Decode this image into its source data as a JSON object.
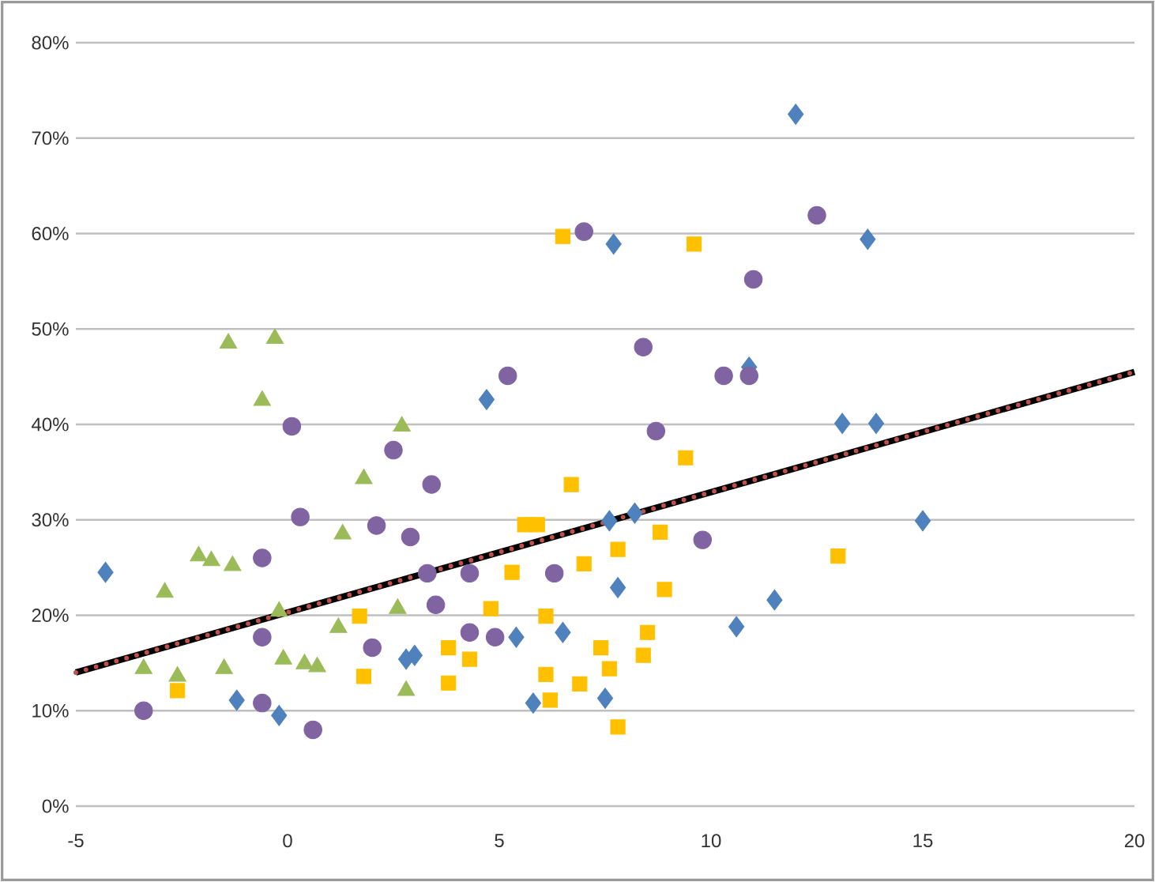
{
  "chart_data": {
    "type": "scatter",
    "xlim": [
      -5,
      20
    ],
    "xticks": [
      -5,
      0,
      5,
      10,
      15,
      20
    ],
    "ylim": [
      0,
      80
    ],
    "yticks": [
      {
        "value": 0,
        "label": "0%"
      },
      {
        "value": 10,
        "label": "10%"
      },
      {
        "value": 20,
        "label": "20%"
      },
      {
        "value": 30,
        "label": "30%"
      },
      {
        "value": 40,
        "label": "40%"
      },
      {
        "value": 50,
        "label": "50%"
      },
      {
        "value": 60,
        "label": "60%"
      },
      {
        "value": 70,
        "label": "70%"
      },
      {
        "value": 80,
        "label": "80%"
      }
    ],
    "grid": "y",
    "series": [
      {
        "color": "#4f81bd",
        "marker": "diamond",
        "x": [
          -4.3,
          -1.2,
          -0.2,
          2.8,
          4.7,
          7.6,
          8.2,
          7.8,
          3.0,
          5.4,
          6.5,
          5.8,
          7.5,
          7.7,
          12.0,
          13.7,
          10.9,
          13.1,
          13.9,
          15.0,
          11.5,
          10.6
        ],
        "values": [
          24.5,
          11.1,
          9.5,
          15.4,
          42.6,
          29.9,
          30.7,
          22.9,
          15.8,
          17.7,
          18.2,
          10.8,
          11.3,
          58.9,
          72.5,
          59.4,
          46.0,
          40.1,
          40.1,
          29.9,
          21.6,
          18.8
        ]
      },
      {
        "color": "#ffc000",
        "marker": "square",
        "x": [
          -2.6,
          1.7,
          1.8,
          9.4,
          6.7,
          5.6,
          5.9,
          8.8,
          7.8,
          5.3,
          7.0,
          8.9,
          4.8,
          6.1,
          8.5,
          3.8,
          4.3,
          7.4,
          8.4,
          3.8,
          6.1,
          6.2,
          6.9,
          7.6,
          7.8,
          6.5,
          9.6,
          13.0
        ],
        "values": [
          12.1,
          19.9,
          13.6,
          36.5,
          33.7,
          29.5,
          29.5,
          28.7,
          26.9,
          24.5,
          25.4,
          22.7,
          20.7,
          19.9,
          18.2,
          16.6,
          15.4,
          16.6,
          15.8,
          12.9,
          13.8,
          11.1,
          12.8,
          14.4,
          8.3,
          59.7,
          58.9,
          26.2
        ]
      },
      {
        "color": "#8064a2",
        "marker": "circle",
        "x": [
          0.1,
          2.5,
          0.3,
          2.1,
          2.9,
          -0.6,
          -0.6,
          2.0,
          -3.4,
          -0.6,
          0.6,
          11.0,
          8.4,
          5.2,
          10.3,
          10.9,
          8.7,
          3.4,
          9.8,
          3.3,
          4.3,
          6.3,
          3.5,
          4.3,
          4.9,
          7.0,
          12.5
        ],
        "values": [
          39.8,
          37.3,
          30.3,
          29.4,
          28.2,
          26.0,
          17.7,
          16.6,
          10.0,
          10.8,
          8.0,
          55.2,
          48.1,
          45.1,
          45.1,
          45.1,
          39.3,
          33.7,
          27.9,
          24.4,
          24.4,
          24.4,
          21.1,
          18.2,
          17.7,
          60.2,
          61.9
        ]
      },
      {
        "color": "#9bbb59",
        "marker": "triangle",
        "x": [
          -1.4,
          -0.3,
          -0.6,
          2.7,
          1.8,
          1.3,
          -2.1,
          -1.8,
          -1.3,
          -2.9,
          -0.2,
          1.2,
          2.6,
          -3.4,
          -2.6,
          -1.5,
          -0.1,
          0.4,
          0.7,
          2.8
        ],
        "values": [
          48.5,
          49.0,
          42.5,
          39.8,
          34.3,
          28.5,
          26.2,
          25.7,
          25.2,
          22.4,
          20.4,
          18.7,
          20.7,
          14.4,
          13.6,
          14.4,
          15.4,
          14.9,
          14.6,
          12.1
        ]
      },
      {
        "type": "line",
        "color": "#000000",
        "line_style": "solid",
        "marker": "none",
        "x": [
          -5,
          20
        ],
        "values": [
          14,
          45.5
        ]
      },
      {
        "type": "line",
        "color": "#c0504d",
        "line_style": "dotted",
        "marker": "none",
        "x": [
          -5,
          20
        ],
        "values": [
          14,
          45.5
        ]
      }
    ]
  }
}
